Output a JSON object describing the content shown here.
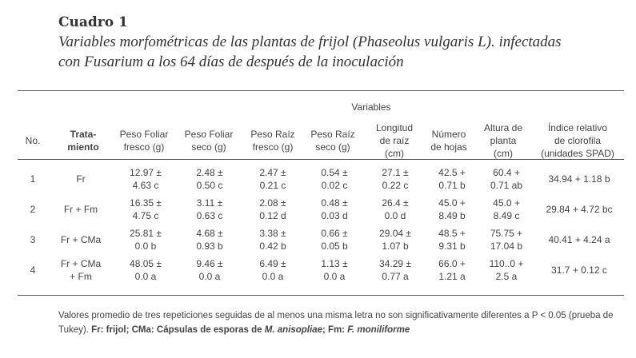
{
  "title": {
    "label": "Cuadro 1",
    "caption_line1_a": "Variables morfométricas de las plantas de frijol (",
    "caption_species": "Phaseolus vulgaris L",
    "caption_line1_b": "). infectadas",
    "caption_line2": "con Fusarium a los 64 días de después de la inoculación"
  },
  "table": {
    "group_header": "Variables",
    "headers": [
      "No.",
      "Tratamiento",
      "Peso Foliar fresco (g)",
      "Peso Foliar seco (g)",
      "Peso Raíz fresco (g)",
      "Peso Raíz seco (g)",
      "Longitud de raíz (cm)",
      "Número de hojas",
      "Altura de planta (cm)",
      "Índice relativo de clorofila (unidades SPAD)"
    ],
    "header_lines": {
      "no": "No.",
      "trat1": "Trata-",
      "trat2": "miento",
      "pff1": "Peso Foliar",
      "pff2": "fresco (g)",
      "pfs1": "Peso Foliar",
      "pfs2": "seco (g)",
      "prf1": "Peso Raíz",
      "prf2": "fresco (g)",
      "prs1": "Peso Raíz",
      "prs2": "seco (g)",
      "lr1": "Longitud",
      "lr2": "de raíz",
      "lr3": "(cm)",
      "nh1": "Número",
      "nh2": "de hojas",
      "ap1": "Altura de",
      "ap2": "planta",
      "ap3": "(cm)",
      "ic1": "Índice relativo",
      "ic2": "de clorofila",
      "ic3": "(unidades SPAD)"
    },
    "rows": [
      {
        "no": "1",
        "trat": [
          "Fr",
          ""
        ],
        "pff": [
          "12.97 ±",
          "4.63 c"
        ],
        "pfs": [
          "2.48 ±",
          "0.50 c"
        ],
        "prf": [
          "2.47 ±",
          "0.21 c"
        ],
        "prs": [
          "0.54 ±",
          "0.02 c"
        ],
        "lr": [
          "27.1 ±",
          "0.22 c"
        ],
        "nh": [
          "42.5 +",
          "0.71 b"
        ],
        "ap": [
          "60.4 +",
          "0.71 ab"
        ],
        "ic": "34.94 + 1.18 b"
      },
      {
        "no": "2",
        "trat": [
          "Fr + Fm",
          ""
        ],
        "pff": [
          "16.35 ±",
          "4.75 c"
        ],
        "pfs": [
          "3.11 ±",
          "0.63 c"
        ],
        "prf": [
          "2.08 ±",
          "0.12 d"
        ],
        "prs": [
          "0.48 ±",
          "0.03 d"
        ],
        "lr": [
          "26.4 ±",
          "0.0 d"
        ],
        "nh": [
          "45.0 +",
          "8.49 b"
        ],
        "ap": [
          "45.0 +",
          "8.49 c"
        ],
        "ic": "29.84 + 4.72 bc"
      },
      {
        "no": "3",
        "trat": [
          "Fr + CMa",
          ""
        ],
        "pff": [
          "25.81 ±",
          "0.0 b"
        ],
        "pfs": [
          "4.68 ±",
          "0.93 b"
        ],
        "prf": [
          "3.38 ±",
          "0.42 b"
        ],
        "prs": [
          "0.66 ±",
          "0.05 b"
        ],
        "lr": [
          "29.04 ±",
          "1.07 b"
        ],
        "nh": [
          "48.5 +",
          "9.31 b"
        ],
        "ap": [
          "75.75 +",
          "17.04 b"
        ],
        "ic": "40.41 + 4.24 a"
      },
      {
        "no": "4",
        "trat": [
          "Fr + CMa",
          "+ Fm"
        ],
        "pff": [
          "48.05 ±",
          "0.0 a"
        ],
        "pfs": [
          "9.46 ±",
          "0.0 a"
        ],
        "prf": [
          "6.49 ±",
          "0.0 a"
        ],
        "prs": [
          "1.13 ±",
          "0.0 a"
        ],
        "lr": [
          "34.29 ±",
          "0.77 a"
        ],
        "nh": [
          "66.0 +",
          "1.21 a"
        ],
        "ap": [
          "110..0 +",
          "2.5 a"
        ],
        "ic": "31.7 + 0.12 c"
      }
    ]
  },
  "footnote": {
    "text": "Valores promedio de tres repeticiones seguidas de al menos una misma letra no son significativamente diferentes a P < 0.05 (prueba de Tukey). ",
    "fr": "Fr: frijol",
    "sep1": "; ",
    "cma": "CMa: Cápsulas de esporas de ",
    "cma_species": "M. anisopliae",
    "sep2": "; ",
    "fm": "Fm: ",
    "fm_species": "F. moniliforme"
  }
}
